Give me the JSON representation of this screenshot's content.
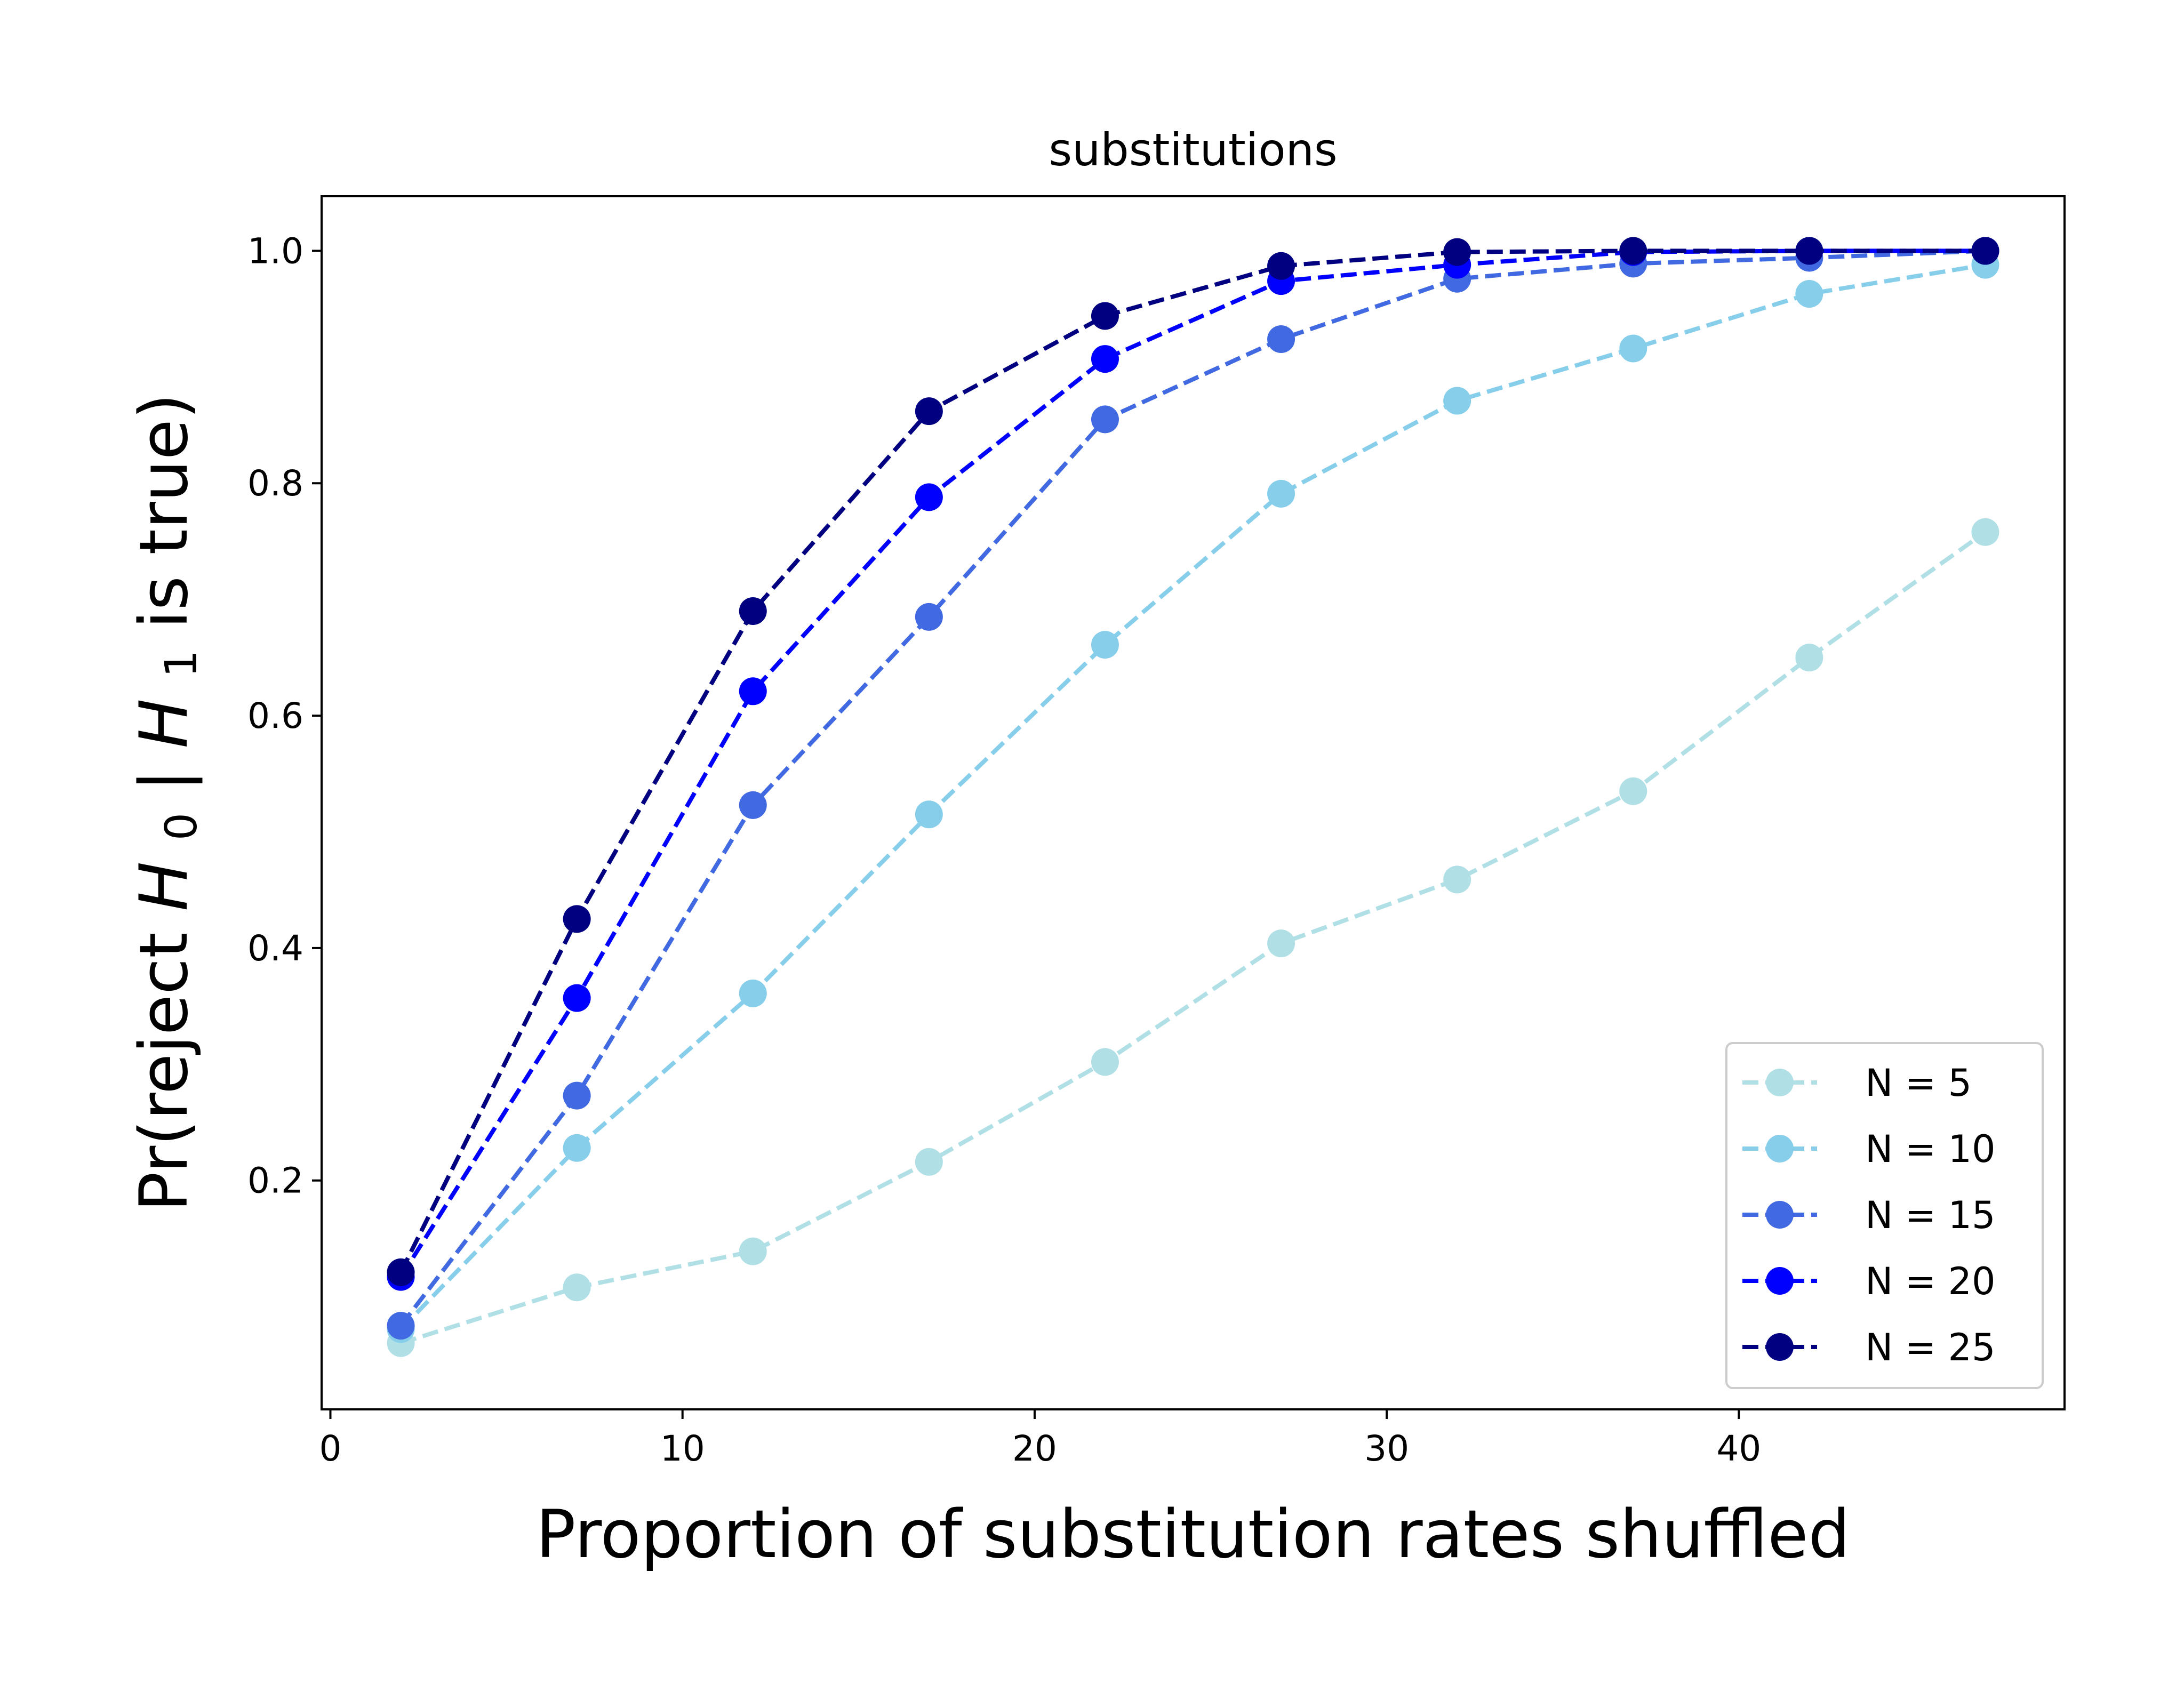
{
  "chart_data": {
    "type": "line",
    "title": "substitutions",
    "xlabel": "Proportion of substitution rates shuffled",
    "ylabel": {
      "prefix": "Pr(reject ",
      "h0": "H",
      "h0_sub": "0",
      "bar": " | ",
      "h1": "H",
      "h1_sub": "1",
      "suffix": " is true)"
    },
    "xlim": [
      -0.25,
      49.25
    ],
    "ylim": [
      0.003,
      1.047
    ],
    "xticks": [
      0,
      10,
      20,
      30,
      40
    ],
    "xtick_labels": [
      "0",
      "10",
      "20",
      "30",
      "40"
    ],
    "yticks": [
      0.2,
      0.4,
      0.6,
      0.8,
      1.0
    ],
    "ytick_labels": [
      "0.2",
      "0.4",
      "0.6",
      "0.8",
      "1.0"
    ],
    "grid": false,
    "legend_position": "lower right",
    "line_style": "dashed",
    "marker": "circle",
    "x": [
      2,
      7,
      12,
      17,
      22,
      27,
      32,
      37,
      42,
      47
    ],
    "series": [
      {
        "name": "N = 5",
        "color": "#b0e0e6",
        "values": [
          0.06,
          0.108,
          0.139,
          0.216,
          0.302,
          0.404,
          0.459,
          0.535,
          0.65,
          0.758
        ]
      },
      {
        "name": "N = 10",
        "color": "#87ceeb",
        "values": [
          0.072,
          0.228,
          0.361,
          0.515,
          0.661,
          0.791,
          0.871,
          0.916,
          0.963,
          0.988
        ]
      },
      {
        "name": "N = 15",
        "color": "#4169e1",
        "values": [
          0.075,
          0.273,
          0.523,
          0.685,
          0.855,
          0.924,
          0.976,
          0.989,
          0.994,
          1.0
        ]
      },
      {
        "name": "N = 20",
        "color": "#0000ff",
        "values": [
          0.117,
          0.357,
          0.621,
          0.788,
          0.907,
          0.974,
          0.988,
          0.999,
          1.0,
          1.0
        ]
      },
      {
        "name": "N = 25",
        "color": "#000080",
        "values": [
          0.121,
          0.425,
          0.69,
          0.862,
          0.944,
          0.987,
          0.999,
          1.0,
          1.0,
          1.0
        ]
      }
    ]
  }
}
